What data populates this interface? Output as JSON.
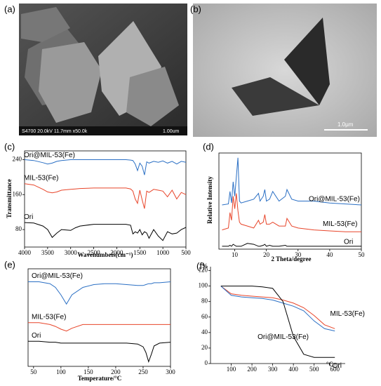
{
  "panels": [
    "(a)",
    "(b)",
    "(c)",
    "(d)",
    "(e)",
    "(f)"
  ],
  "sem": {
    "info": "S4700 20.0kV 11.7mm x50.0k",
    "scale": "1.00um"
  },
  "tem": {
    "scale": "1.0μm"
  },
  "chart_data": [
    {
      "type": "line",
      "ylabel": "Transmittance",
      "xlabel": "Wavenumbeis(cm⁻¹)",
      "xlim": [
        4000,
        500
      ],
      "xticks": [
        4000,
        3500,
        3000,
        2500,
        2000,
        1500,
        1000,
        500
      ],
      "ylim": [
        40,
        260
      ],
      "yticks": [
        80,
        160,
        240
      ],
      "x": [
        4000,
        3800,
        3600,
        3500,
        3400,
        3300,
        3200,
        3000,
        2900,
        2800,
        2500,
        2000,
        1800,
        1700,
        1650,
        1600,
        1550,
        1500,
        1450,
        1400,
        1350,
        1300,
        1200,
        1100,
        1000,
        900,
        800,
        700,
        600,
        500
      ],
      "series": [
        {
          "name": "Ori@MIL-53(Fe)",
          "color": "#2a6fc4",
          "values": [
            240,
            238,
            233,
            230,
            232,
            236,
            238,
            240,
            240,
            240,
            240,
            240,
            240,
            239,
            238,
            230,
            215,
            232,
            225,
            205,
            235,
            232,
            236,
            234,
            237,
            232,
            236,
            230,
            236,
            234
          ]
        },
        {
          "name": "MIL-53(Fe)",
          "color": "#e8452a",
          "values": [
            185,
            182,
            172,
            166,
            164,
            166,
            170,
            172,
            173,
            174,
            175,
            175,
            175,
            173,
            168,
            150,
            140,
            170,
            148,
            128,
            168,
            165,
            172,
            170,
            168,
            155,
            170,
            150,
            165,
            160
          ]
        },
        {
          "name": "Ori",
          "color": "#000000",
          "values": [
            96,
            95,
            88,
            80,
            62,
            72,
            80,
            78,
            84,
            88,
            92,
            92,
            92,
            90,
            70,
            75,
            72,
            80,
            68,
            75,
            72,
            60,
            80,
            65,
            55,
            75,
            70,
            72,
            80,
            85
          ]
        }
      ]
    },
    {
      "type": "line",
      "ylabel": "Relative Intensity",
      "xlabel": "2 Theta/degree",
      "xlim": [
        5,
        50
      ],
      "xticks": [
        10,
        20,
        30,
        40,
        50
      ],
      "ylim": [
        0,
        100
      ],
      "x": [
        6,
        8,
        8.5,
        9,
        9.5,
        10,
        10.5,
        11,
        11.5,
        12,
        14,
        16,
        17.5,
        18,
        19,
        19.5,
        20,
        21,
        22,
        24,
        26,
        26.5,
        28,
        30,
        35,
        40,
        45,
        50
      ],
      "series": [
        {
          "name": "Ori@MIL-53(Fe)",
          "color": "#2a6fc4",
          "values": [
            46,
            47,
            60,
            48,
            70,
            55,
            75,
            95,
            50,
            48,
            50,
            52,
            58,
            50,
            55,
            62,
            50,
            52,
            60,
            50,
            55,
            62,
            52,
            50,
            50,
            48,
            47,
            46
          ]
        },
        {
          "name": "MIL-53(Fe)",
          "color": "#e8452a",
          "values": [
            20,
            22,
            38,
            30,
            55,
            42,
            58,
            40,
            28,
            26,
            24,
            22,
            30,
            26,
            28,
            36,
            26,
            26,
            28,
            24,
            24,
            32,
            24,
            22,
            20,
            19,
            18,
            18
          ]
        },
        {
          "name": "Ori",
          "color": "#000000",
          "values": [
            3,
            3,
            4,
            3,
            5,
            4,
            3,
            3,
            3,
            3,
            6,
            5,
            3,
            3,
            4,
            5,
            3,
            4,
            3,
            3,
            4,
            3,
            3,
            3,
            3,
            3,
            3,
            3
          ]
        }
      ]
    },
    {
      "type": "line",
      "xlabel": "Temperature/°C",
      "xlim": [
        40,
        300
      ],
      "xticks": [
        50,
        100,
        150,
        200,
        250,
        300
      ],
      "ylim": [
        -5,
        100
      ],
      "x": [
        40,
        60,
        80,
        90,
        100,
        110,
        120,
        140,
        160,
        180,
        200,
        220,
        240,
        250,
        255,
        260,
        265,
        270,
        280,
        300
      ],
      "series": [
        {
          "name": "Ori@MIL-53(Fe)",
          "color": "#2a6fc4",
          "values": [
            86,
            86,
            84,
            80,
            72,
            62,
            72,
            80,
            83,
            84,
            84,
            83,
            82,
            82,
            83,
            84,
            84,
            85,
            85,
            86
          ]
        },
        {
          "name": "MIL-53(Fe)",
          "color": "#e8452a",
          "values": [
            42,
            42,
            40,
            38,
            35,
            33,
            36,
            40,
            40,
            40,
            40,
            40,
            40,
            40,
            40,
            40,
            40,
            40,
            40,
            40
          ]
        },
        {
          "name": "Ori",
          "color": "#000000",
          "values": [
            22,
            22,
            21,
            21,
            20,
            20,
            20,
            20,
            20,
            20,
            20,
            20,
            19,
            16,
            10,
            0,
            8,
            17,
            20,
            21
          ]
        }
      ]
    },
    {
      "type": "line",
      "ylabel": "%",
      "xlabel": "°C",
      "xlim": [
        0,
        650
      ],
      "xticks": [
        100,
        200,
        300,
        400,
        500,
        600
      ],
      "ylim": [
        0,
        125
      ],
      "yticks": [
        0,
        20,
        40,
        60,
        80,
        100,
        120
      ],
      "x": [
        50,
        100,
        150,
        200,
        250,
        300,
        350,
        400,
        450,
        500,
        550,
        600
      ],
      "series": [
        {
          "name": "MIL-53(Fe)",
          "color": "#e8452a",
          "values": [
            100,
            90,
            88,
            87,
            86,
            85,
            82,
            78,
            72,
            62,
            50,
            45
          ]
        },
        {
          "name": "Ori@MIL-53(Fe)",
          "color": "#2a6fc4",
          "values": [
            100,
            88,
            86,
            85,
            84,
            82,
            78,
            74,
            68,
            55,
            45,
            42
          ]
        },
        {
          "name": "Ori",
          "color": "#000000",
          "values": [
            100,
            100,
            100,
            100,
            99,
            97,
            80,
            35,
            12,
            8,
            8,
            8
          ]
        }
      ]
    }
  ]
}
